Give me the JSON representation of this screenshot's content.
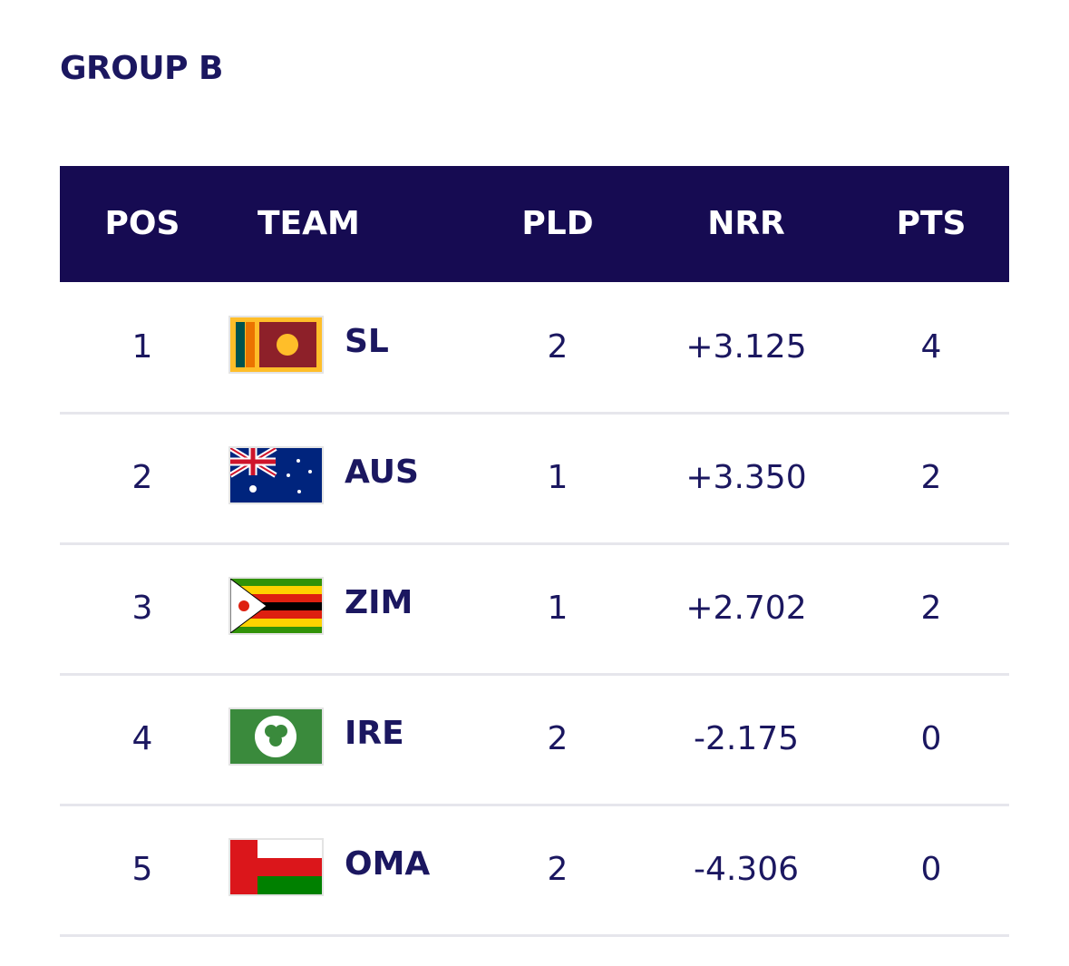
{
  "header": {
    "title": "GROUP B"
  },
  "table": {
    "columns": [
      "POS",
      "TEAM",
      "PLD",
      "NRR",
      "PTS"
    ],
    "rows": [
      [
        1,
        "SL",
        2,
        "+3.125",
        4
      ],
      [
        2,
        "AUS",
        1,
        "+3.350",
        2
      ],
      [
        3,
        "ZIM",
        1,
        "+2.702",
        2
      ],
      [
        4,
        "IRE",
        2,
        "-2.175",
        0
      ],
      [
        5,
        "OMA",
        2,
        "-4.306",
        0
      ]
    ]
  }
}
